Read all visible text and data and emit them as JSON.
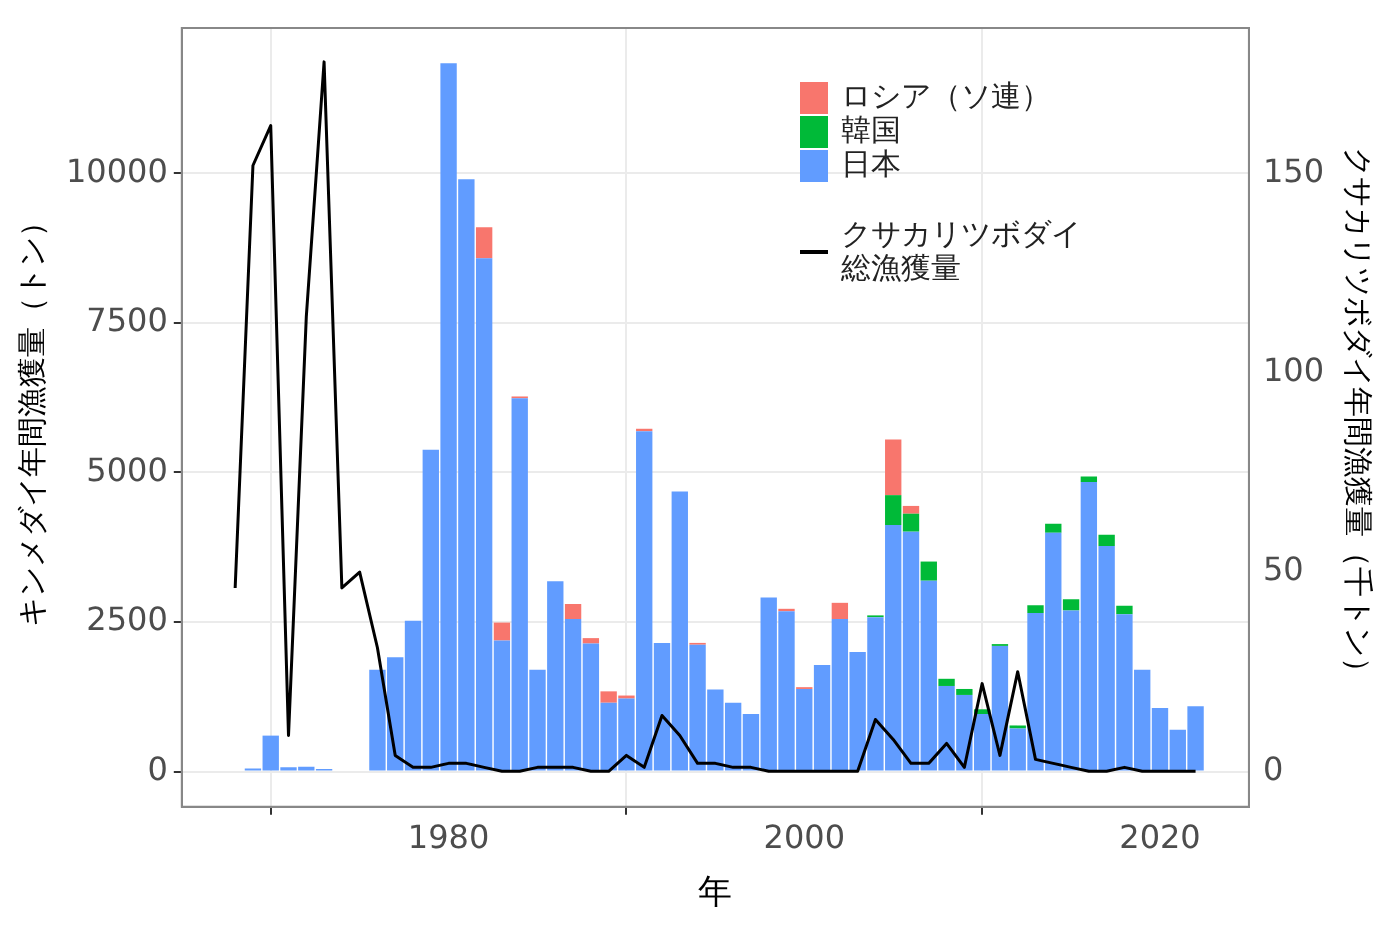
{
  "chart_data": {
    "type": "bar",
    "stacked": true,
    "xlabel": "年",
    "ylabel": "キンメダイ年間漁獲量（トン）",
    "y2label": "クサカリツボダイ年間漁獲量（千トン）",
    "x": [
      1969,
      1970,
      1971,
      1972,
      1973,
      1974,
      1975,
      1976,
      1977,
      1978,
      1979,
      1980,
      1981,
      1982,
      1983,
      1984,
      1985,
      1986,
      1987,
      1988,
      1989,
      1990,
      1991,
      1992,
      1993,
      1994,
      1995,
      1996,
      1997,
      1998,
      1999,
      2000,
      2001,
      2002,
      2003,
      2004,
      2005,
      2006,
      2007,
      2008,
      2009,
      2010,
      2011,
      2012,
      2013,
      2014,
      2015,
      2016,
      2017,
      2018,
      2019,
      2020,
      2021,
      2022
    ],
    "series": [
      {
        "name": "日本",
        "color": "#619cff",
        "values": [
          50,
          600,
          70,
          80,
          40,
          null,
          null,
          1700,
          1910,
          2520,
          5380,
          11840,
          9900,
          8580,
          2190,
          6240,
          1700,
          3180,
          2550,
          2140,
          1150,
          1220,
          5690,
          2150,
          4680,
          2120,
          1370,
          1150,
          960,
          2910,
          2680,
          1380,
          1780,
          2550,
          2000,
          2580,
          4120,
          4010,
          3190,
          1430,
          1280,
          960,
          2100,
          720,
          2650,
          3990,
          2690,
          4840,
          3770,
          2630,
          1700,
          1060,
          700,
          1090
        ]
      },
      {
        "name": "韓国",
        "color": "#00ba38",
        "values": [
          null,
          null,
          null,
          null,
          null,
          null,
          null,
          null,
          null,
          null,
          null,
          null,
          null,
          null,
          null,
          null,
          null,
          null,
          null,
          null,
          null,
          null,
          null,
          null,
          null,
          null,
          null,
          null,
          null,
          null,
          null,
          null,
          null,
          null,
          null,
          30,
          500,
          300,
          320,
          120,
          100,
          80,
          30,
          50,
          130,
          150,
          190,
          90,
          190,
          140,
          null,
          null,
          null,
          null
        ]
      },
      {
        "name": "ロシア（ソ連）",
        "color": "#f8766d",
        "values": [
          null,
          null,
          null,
          null,
          null,
          null,
          null,
          null,
          null,
          null,
          null,
          null,
          null,
          520,
          300,
          30,
          null,
          null,
          250,
          90,
          190,
          50,
          40,
          null,
          null,
          30,
          null,
          null,
          null,
          null,
          40,
          30,
          null,
          270,
          null,
          null,
          930,
          130,
          null,
          null,
          null,
          null,
          null,
          null,
          null,
          null,
          null,
          null,
          null,
          null,
          null,
          null,
          null,
          null
        ]
      },
      {
        "name": "クサカリツボダイ総漁獲量",
        "type": "line",
        "axis": "y2",
        "color": "#000000",
        "x": [
          1968,
          1969,
          1970,
          1971,
          1972,
          1973,
          1974,
          1975,
          1976,
          1977,
          1978,
          1979,
          1980,
          1981,
          1982,
          1983,
          1984,
          1985,
          1986,
          1987,
          1988,
          1989,
          1990,
          1991,
          1992,
          1993,
          1994,
          1995,
          1996,
          1997,
          1998,
          1999,
          2000,
          2001,
          2002,
          2003,
          2004,
          2005,
          2006,
          2007,
          2008,
          2009,
          2010,
          2011,
          2012,
          2013,
          2014,
          2015,
          2016,
          2017,
          2018,
          2019,
          2020,
          2021,
          2022
        ],
        "values": [
          46,
          152,
          162,
          9,
          114,
          178,
          46,
          50,
          31,
          4,
          1,
          1,
          2,
          2,
          1,
          0,
          0,
          1,
          1,
          1,
          0,
          0,
          4,
          1,
          14,
          9,
          2,
          2,
          1,
          1,
          0,
          0,
          0,
          0,
          0,
          0,
          13,
          8,
          2,
          2,
          7,
          1,
          22,
          4,
          25,
          3,
          2,
          1,
          0,
          0,
          1,
          0,
          0,
          0,
          0
        ]
      }
    ],
    "xlim": [
      1965,
      2025
    ],
    "xticks": [
      1980,
      2000,
      2020
    ],
    "ylim": [
      -590,
      12430
    ],
    "yticks": [
      0,
      2500,
      5000,
      7500,
      10000
    ],
    "y2lim": [
      -8.9,
      186.5
    ],
    "y2ticks": [
      0,
      50,
      100,
      150
    ],
    "grid": true,
    "legend": "top right"
  }
}
